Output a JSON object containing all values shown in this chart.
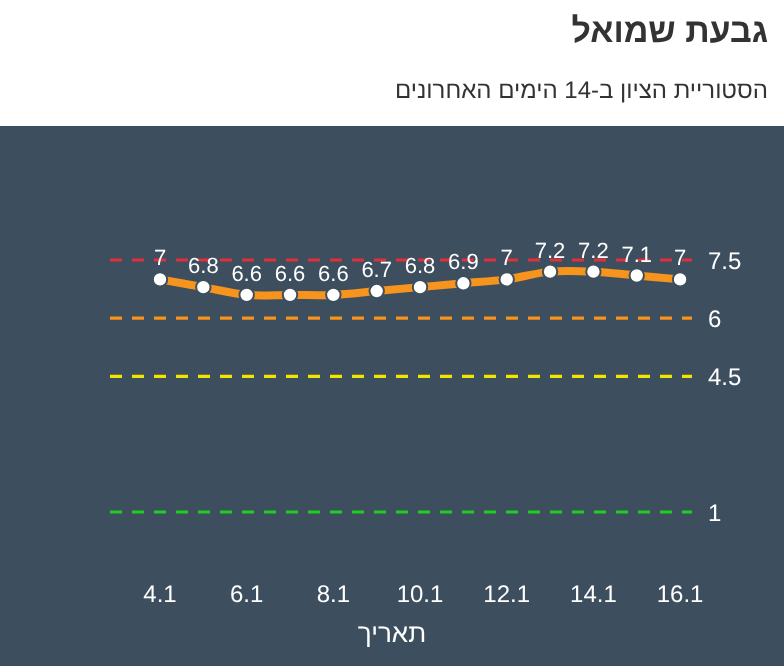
{
  "chart_data": {
    "type": "line",
    "title": "גבעת שמואל",
    "subtitle": "הסטוריית הציון ב-14 הימים האחרונים",
    "xlabel": "תאריך",
    "categories": [
      "4.1",
      null,
      "6.1",
      null,
      "8.1",
      null,
      "10.1",
      null,
      "12.1",
      null,
      "14.1",
      null,
      "16.1"
    ],
    "series": [
      {
        "color": "#f7941d",
        "values": [
          7,
          6.8,
          6.6,
          6.6,
          6.6,
          6.7,
          6.8,
          6.9,
          7,
          7.2,
          7.2,
          7.1,
          7
        ]
      }
    ],
    "tick_labels": "x",
    "marker": "circle",
    "line_style": "solid",
    "data_labels": true,
    "ref_lines": [
      {
        "axis": "y",
        "value": 7.5,
        "label": "7.5",
        "color": "#e0303a",
        "line_style": "dashed"
      },
      {
        "axis": "y",
        "value": 6,
        "label": "6",
        "color": "#f7941d",
        "line_style": "dashed"
      },
      {
        "axis": "y",
        "value": 4.5,
        "label": "4.5",
        "color": "#f2e600",
        "line_style": "dashed"
      },
      {
        "axis": "y",
        "value": 1,
        "label": "1",
        "color": "#22cc22",
        "line_style": "dashed"
      }
    ]
  }
}
